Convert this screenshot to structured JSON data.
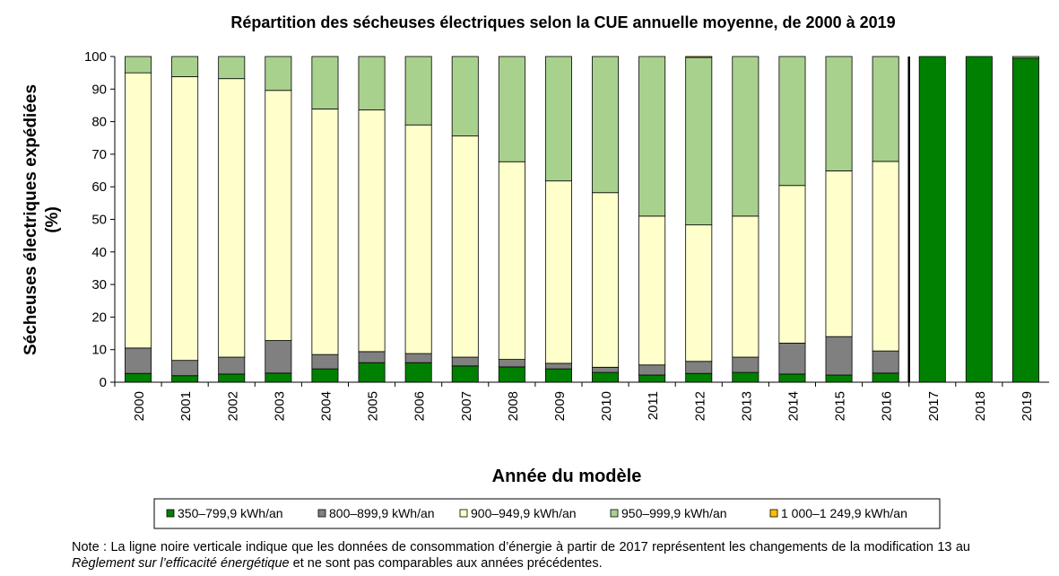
{
  "chart_data": {
    "type": "stacked-bar",
    "title": "Répartition des sécheuses électriques selon la CUE annuelle moyenne, de 2000 à 2019",
    "ylabel": [
      "Sécheuses électriques expédiées",
      "(%)"
    ],
    "xlabel": "Année du modèle",
    "categories": [
      "2000",
      "2001",
      "2002",
      "2003",
      "2004",
      "2005",
      "2006",
      "2007",
      "2008",
      "2009",
      "2010",
      "2011",
      "2012",
      "2013",
      "2014",
      "2015",
      "2016",
      "2017",
      "2018",
      "2019"
    ],
    "series": [
      {
        "name": "350–799,9 kWh/an",
        "color": "#008000",
        "values": [
          2.7,
          2,
          2.5,
          2.8,
          4.1,
          6,
          6,
          5,
          4.7,
          4.1,
          3,
          2.2,
          2.7,
          3,
          2.5,
          2.2,
          2.8,
          100,
          100,
          99.5
        ]
      },
      {
        "name": "800–899,9 kWh/an",
        "color": "#808080",
        "values": [
          7.8,
          4.7,
          5.2,
          10,
          4.4,
          3.4,
          2.8,
          2.7,
          2.3,
          1.7,
          1.6,
          3.1,
          3.7,
          4.7,
          9.5,
          11.8,
          6.8,
          0,
          0,
          0
        ]
      },
      {
        "name": "900–949,9 kWh/an",
        "color": "#ffffcc",
        "values": [
          84.5,
          87.1,
          85.5,
          76.8,
          75.4,
          74.2,
          70.2,
          67.9,
          60.7,
          56,
          53.6,
          45.7,
          41.9,
          43.3,
          48.4,
          50.9,
          58.2,
          0,
          0,
          0
        ]
      },
      {
        "name": "950–999,9 kWh/an",
        "color": "#a9d18e",
        "values": [
          5,
          6.2,
          6.8,
          10.4,
          16.1,
          16.4,
          21,
          24.4,
          32.3,
          38.2,
          41.8,
          49,
          51.4,
          49,
          39.6,
          35.1,
          32.2,
          0,
          0,
          0.5
        ]
      },
      {
        "name": "1 000–1 249,9 kWh/an",
        "color": "#ffc000",
        "values": [
          0,
          0,
          0,
          0,
          0,
          0,
          0,
          0,
          0,
          0,
          0,
          0,
          0.3,
          0,
          0,
          0,
          0,
          0,
          0,
          0
        ]
      }
    ],
    "ylim": [
      0,
      100
    ],
    "yticks": [
      0,
      10,
      20,
      30,
      40,
      50,
      60,
      70,
      80,
      90,
      100
    ],
    "divider_before": 17,
    "note": [
      "Note : La ligne noire verticale indique que les données de consommation d’énergie à partir de 2017 représentent les changements de la modification 13 au ",
      "Règlement sur l’efficacité énergétique",
      " et ne sont pas comparables aux années précédentes."
    ]
  }
}
